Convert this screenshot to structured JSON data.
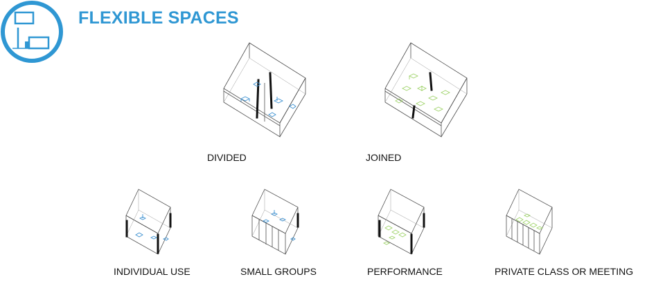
{
  "title": "FLEXIBLE SPACES",
  "colors": {
    "accent": "#2f97d3",
    "furniture_blue": "#3a8fd0",
    "furniture_green": "#9fd36a",
    "line": "#4d4d4d"
  },
  "logo": {
    "icon": "floor-plan-icon"
  },
  "configurations": [
    {
      "id": "divided",
      "label": "DIVIDED",
      "furniture": "blue"
    },
    {
      "id": "joined",
      "label": "JOINED",
      "furniture": "green"
    },
    {
      "id": "individual-use",
      "label": "INDIVIDUAL USE",
      "furniture": "blue"
    },
    {
      "id": "small-groups",
      "label": "SMALL GROUPS",
      "furniture": "blue"
    },
    {
      "id": "performance",
      "label": "PERFORMANCE",
      "furniture": "green"
    },
    {
      "id": "private-class",
      "label": "PRIVATE CLASS OR MEETING",
      "furniture": "green"
    }
  ]
}
